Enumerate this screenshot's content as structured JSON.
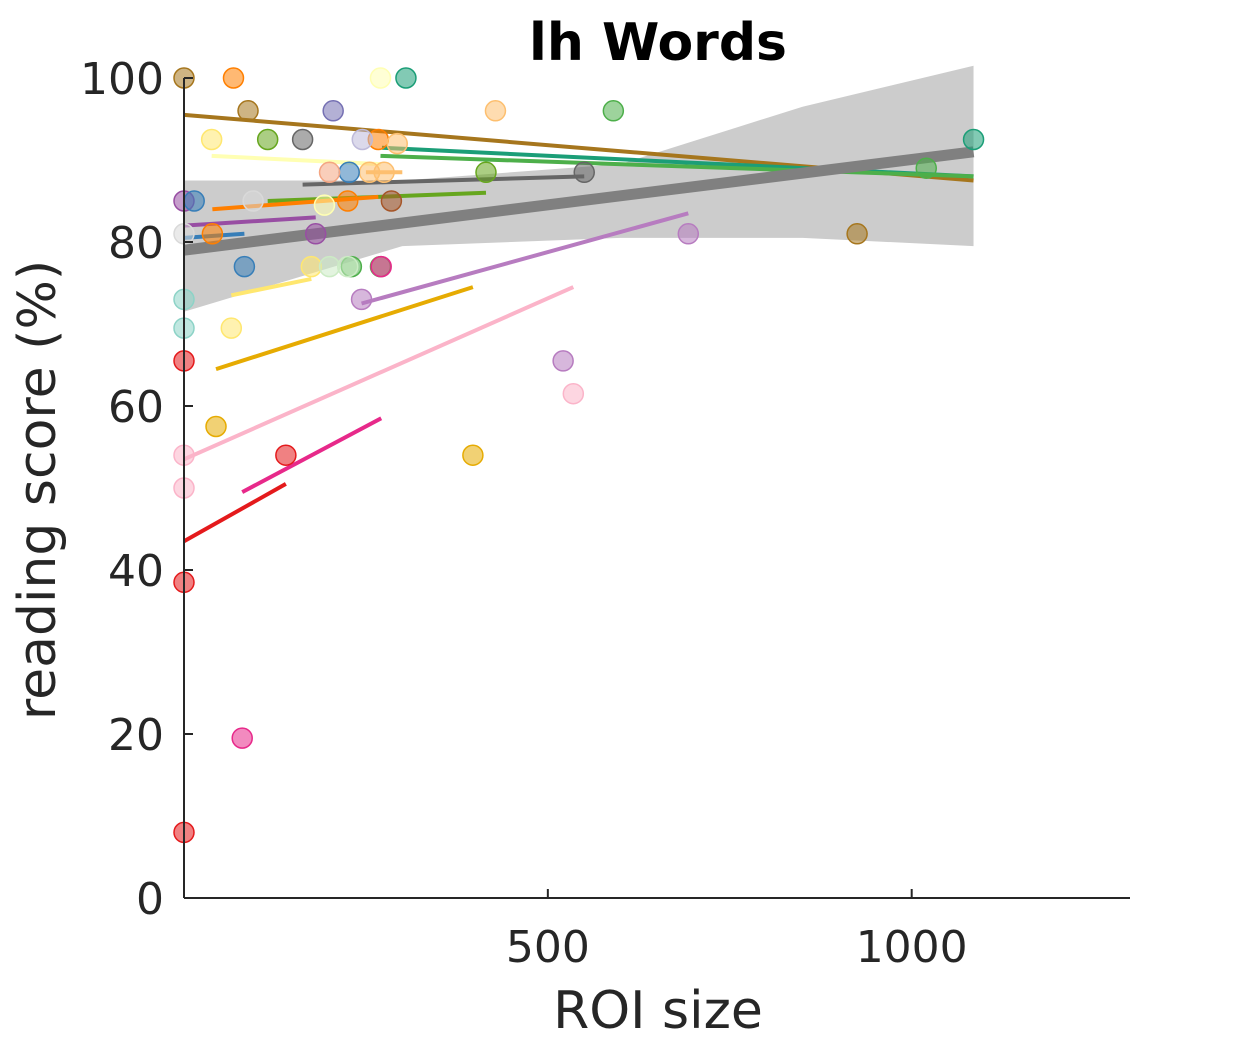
{
  "chart_data": {
    "type": "scatter",
    "title": "lh Words",
    "xlabel": "ROI size",
    "ylabel": "reading score (%)",
    "xlim": [
      0,
      1300
    ],
    "ylim": [
      0,
      100
    ],
    "xticks": [
      500,
      1000
    ],
    "yticks": [
      0,
      20,
      40,
      60,
      80,
      100
    ],
    "grid": false,
    "legend": "none",
    "overall_fit": {
      "color": "#808080",
      "line": [
        [
          0,
          79.0
        ],
        [
          1085,
          91.0
        ]
      ],
      "ci_upper": [
        [
          0,
          87.5
        ],
        [
          300,
          87.5
        ],
        [
          600,
          89.5
        ],
        [
          850,
          96.5
        ],
        [
          1085,
          101.5
        ]
      ],
      "ci_lower": [
        [
          0,
          71.5
        ],
        [
          300,
          79.5
        ],
        [
          600,
          80.5
        ],
        [
          850,
          80.5
        ],
        [
          1085,
          79.5
        ]
      ],
      "ci_color": "#cccccc"
    },
    "series": [
      {
        "color": "#a6761d",
        "points": [
          [
            0,
            100
          ],
          [
            88,
            96
          ],
          [
            925,
            81
          ]
        ],
        "fit": [
          [
            0,
            95.5
          ],
          [
            1085,
            87.5
          ]
        ]
      },
      {
        "color": "#1b9e77",
        "points": [
          [
            305,
            100
          ],
          [
            1085,
            92.5
          ]
        ],
        "fit": [
          [
            272,
            91.5
          ],
          [
            1085,
            88.0
          ]
        ]
      },
      {
        "color": "#4daf4a",
        "points": [
          [
            590,
            96
          ],
          [
            1020,
            89
          ],
          [
            270,
            77
          ],
          [
            230,
            77
          ]
        ],
        "fit": [
          [
            270,
            90.5
          ],
          [
            1085,
            88.0
          ]
        ]
      },
      {
        "color": "#e6ab02",
        "points": [
          [
            44,
            57.5
          ],
          [
            397,
            54
          ]
        ],
        "fit": [
          [
            44,
            64.5
          ],
          [
            397,
            74.5
          ]
        ]
      },
      {
        "color": "#666666",
        "points": [
          [
            163,
            92.5
          ],
          [
            550,
            88.5
          ]
        ],
        "fit": [
          [
            163,
            87.0
          ],
          [
            550,
            88.0
          ]
        ]
      },
      {
        "color": "#66a61e",
        "points": [
          [
            115,
            92.5
          ],
          [
            415,
            88.5
          ]
        ],
        "fit": [
          [
            115,
            85.0
          ],
          [
            415,
            86.0
          ]
        ]
      },
      {
        "color": "#ff7f00",
        "points": [
          [
            68,
            100
          ],
          [
            267,
            92.5
          ],
          [
            39,
            81
          ],
          [
            225,
            85
          ]
        ],
        "fit": [
          [
            39,
            84.0
          ],
          [
            267,
            85.5
          ]
        ]
      },
      {
        "color": "#fdbf6f",
        "points": [
          [
            275,
            88.5
          ],
          [
            293,
            92
          ],
          [
            428,
            96
          ],
          [
            255,
            88.5
          ]
        ],
        "fit": [
          [
            250,
            88.5
          ],
          [
            300,
            88.5
          ]
        ]
      },
      {
        "color": "#984ea3",
        "points": [
          [
            0,
            85
          ],
          [
            181,
            81
          ]
        ],
        "fit": [
          [
            0,
            82.0
          ],
          [
            181,
            83.0
          ]
        ]
      },
      {
        "color": "#e7298a",
        "points": [
          [
            271,
            77
          ],
          [
            80,
            19.5
          ]
        ],
        "fit": [
          [
            80,
            49.5
          ],
          [
            271,
            58.5
          ]
        ]
      },
      {
        "color": "#e41a1c",
        "points": [
          [
            0,
            65.5
          ],
          [
            0,
            38.5
          ],
          [
            0,
            8
          ],
          [
            140,
            54
          ]
        ],
        "fit": [
          [
            0,
            43.5
          ],
          [
            140,
            50.5
          ]
        ]
      },
      {
        "color": "#fbb4c9",
        "points": [
          [
            0,
            54
          ],
          [
            0,
            50
          ],
          [
            535,
            61.5
          ]
        ],
        "fit": [
          [
            0,
            53.5
          ],
          [
            535,
            74.5
          ]
        ]
      },
      {
        "color": "#b77cc0",
        "points": [
          [
            244,
            73
          ],
          [
            693,
            81
          ],
          [
            521,
            65.5
          ]
        ],
        "fit": [
          [
            244,
            72.5
          ],
          [
            693,
            83.5
          ]
        ]
      },
      {
        "color": "#ffe76f",
        "points": [
          [
            38,
            92.5
          ],
          [
            65,
            69.5
          ],
          [
            175,
            77
          ]
        ],
        "fit": [
          [
            65,
            73.5
          ],
          [
            175,
            75.5
          ]
        ]
      },
      {
        "color": "#ffffb3",
        "points": [
          [
            270,
            100
          ],
          [
            193,
            84.5
          ]
        ],
        "fit": [
          [
            38,
            90.5
          ],
          [
            270,
            89.5
          ]
        ]
      },
      {
        "color": "#8dd3c7",
        "points": [
          [
            0,
            73
          ],
          [
            0,
            69.5
          ]
        ],
        "fit": []
      },
      {
        "color": "#377eb8",
        "points": [
          [
            83,
            77
          ],
          [
            227,
            88.5
          ],
          [
            14,
            85
          ]
        ],
        "fit": [
          [
            0,
            80.5
          ],
          [
            83,
            81.0
          ]
        ]
      },
      {
        "color": "#7570b3",
        "points": [
          [
            205,
            96
          ]
        ],
        "fit": []
      },
      {
        "color": "#bebada",
        "points": [
          [
            245,
            92.5
          ]
        ],
        "fit": []
      },
      {
        "color": "#f4a582",
        "points": [
          [
            200,
            88.5
          ]
        ],
        "fit": []
      },
      {
        "color": "#a65628",
        "points": [
          [
            285,
            85
          ]
        ],
        "fit": []
      },
      {
        "color": "#d9d9d9",
        "points": [
          [
            0,
            81
          ],
          [
            95,
            85
          ]
        ],
        "fit": []
      },
      {
        "color": "#ccebc5",
        "points": [
          [
            200,
            77
          ],
          [
            225,
            77
          ]
        ],
        "fit": []
      }
    ]
  }
}
